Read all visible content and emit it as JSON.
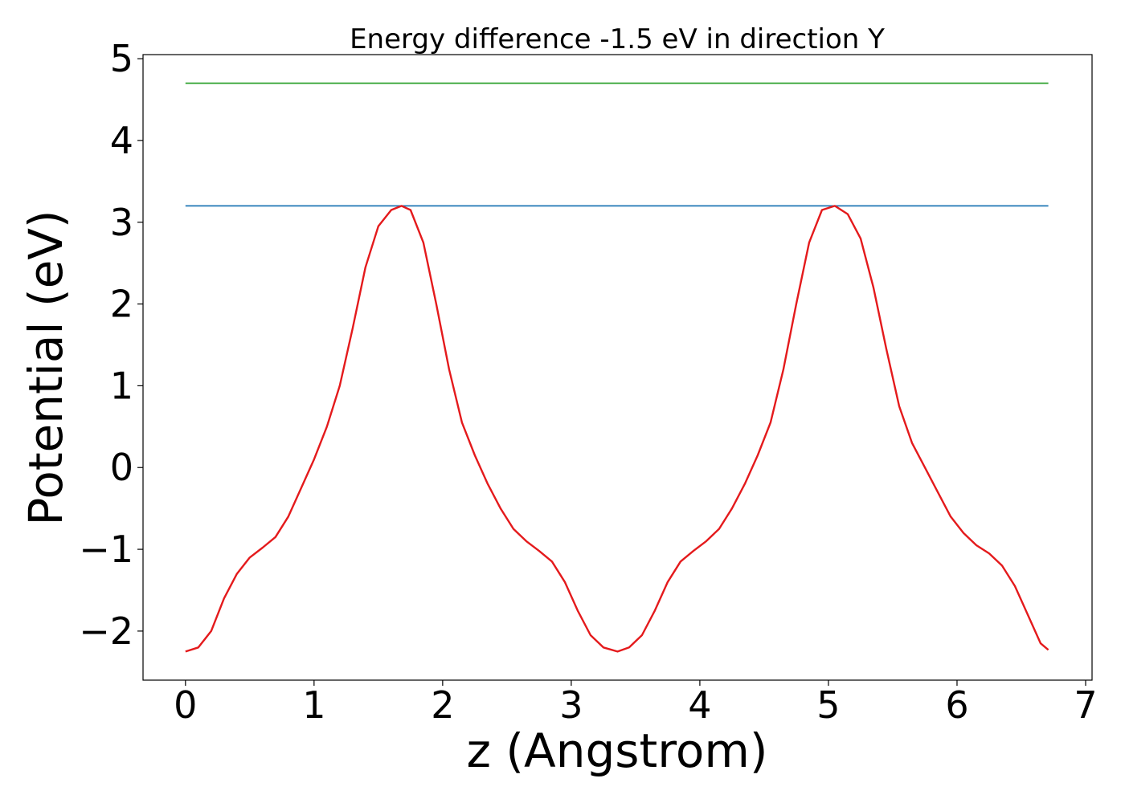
{
  "chart_data": {
    "type": "line",
    "title": "Energy difference -1.5 eV in direction Y",
    "xlabel": "z (Angstrom)",
    "ylabel": "Potential (eV)",
    "xlim": [
      -0.33,
      7.05
    ],
    "ylim": [
      -2.6,
      5.05
    ],
    "xticks": [
      0,
      1,
      2,
      3,
      4,
      5,
      6,
      7
    ],
    "xtick_labels": [
      "0",
      "1",
      "2",
      "3",
      "4",
      "5",
      "6",
      "7"
    ],
    "yticks": [
      -2,
      -1,
      0,
      1,
      2,
      3,
      4,
      5
    ],
    "ytick_labels": [
      "−2",
      "−1",
      "0",
      "1",
      "2",
      "3",
      "4",
      "5"
    ],
    "grid": false,
    "series": [
      {
        "color": "#2ca02c",
        "x": [
          0,
          6.71
        ],
        "y": [
          4.7,
          4.7
        ]
      },
      {
        "color": "#1f77b4",
        "x": [
          0,
          6.71
        ],
        "y": [
          3.2,
          3.2
        ]
      },
      {
        "color": "#e41a1c",
        "x": [
          0.0,
          0.1,
          0.2,
          0.3,
          0.4,
          0.5,
          0.6,
          0.7,
          0.8,
          0.9,
          1.0,
          1.1,
          1.2,
          1.3,
          1.4,
          1.5,
          1.6,
          1.68,
          1.75,
          1.85,
          1.95,
          2.05,
          2.15,
          2.25,
          2.35,
          2.45,
          2.55,
          2.65,
          2.75,
          2.85,
          2.95,
          3.05,
          3.15,
          3.25,
          3.36,
          3.45,
          3.55,
          3.65,
          3.75,
          3.85,
          3.95,
          4.05,
          4.15,
          4.25,
          4.35,
          4.45,
          4.55,
          4.65,
          4.75,
          4.85,
          4.95,
          5.05,
          5.15,
          5.25,
          5.35,
          5.45,
          5.55,
          5.65,
          5.75,
          5.85,
          5.95,
          6.05,
          6.15,
          6.25,
          6.35,
          6.45,
          6.55,
          6.65,
          6.71
        ],
        "y": [
          -2.25,
          -2.2,
          -2.0,
          -1.6,
          -1.3,
          -1.1,
          -0.98,
          -0.85,
          -0.6,
          -0.25,
          0.1,
          0.5,
          1.0,
          1.7,
          2.45,
          2.95,
          3.15,
          3.2,
          3.15,
          2.75,
          2.0,
          1.2,
          0.55,
          0.15,
          -0.2,
          -0.5,
          -0.75,
          -0.9,
          -1.02,
          -1.15,
          -1.4,
          -1.75,
          -2.05,
          -2.2,
          -2.25,
          -2.2,
          -2.05,
          -1.75,
          -1.4,
          -1.15,
          -1.02,
          -0.9,
          -0.75,
          -0.5,
          -0.2,
          0.15,
          0.55,
          1.2,
          2.0,
          2.75,
          3.15,
          3.2,
          3.1,
          2.8,
          2.2,
          1.45,
          0.75,
          0.3,
          0.0,
          -0.3,
          -0.6,
          -0.8,
          -0.95,
          -1.05,
          -1.2,
          -1.45,
          -1.8,
          -2.15,
          -2.23
        ]
      }
    ]
  }
}
